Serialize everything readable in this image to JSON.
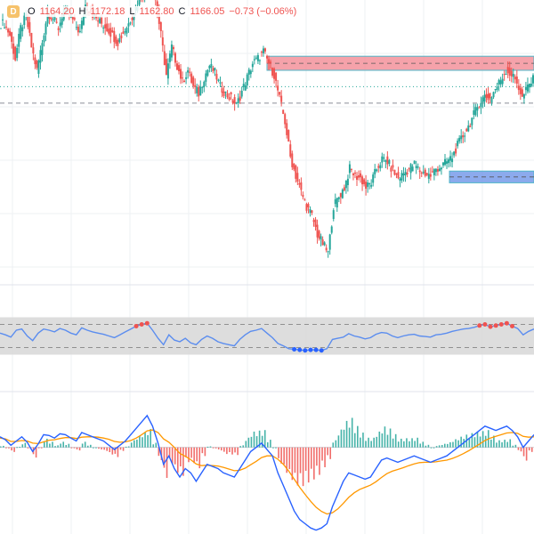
{
  "legend": {
    "symbol_badge": "D",
    "open_label": "O",
    "open": "1164.20",
    "high_label": "H",
    "high": "1172.18",
    "low_label": "L",
    "low": "1162.80",
    "close_label": "C",
    "close": "1166.05",
    "change": "−0.73 (−0.06%)"
  },
  "colors": {
    "up": "#26a69a",
    "down": "#ef5350",
    "rsi_line": "#5b8def",
    "rsi_band": "#d9d9d9",
    "macd_line": "#2962ff",
    "signal_line": "#ff9800",
    "supply_zone": "#f28b95",
    "demand_zone": "#6f95e8"
  },
  "chart_data": [
    {
      "type": "candlestick",
      "title": "",
      "ylim": [
        1080,
        1200
      ],
      "close_path": [
        1190,
        1185,
        1175,
        1188,
        1193,
        1180,
        1170,
        1182,
        1195,
        1192,
        1188,
        1196,
        1194,
        1190,
        1186,
        1198,
        1195,
        1192,
        1190,
        1188,
        1185,
        1182,
        1186,
        1190,
        1195,
        1200,
        1205,
        1210,
        1200,
        1185,
        1168,
        1180,
        1172,
        1165,
        1170,
        1163,
        1160,
        1167,
        1172,
        1169,
        1163,
        1160,
        1158,
        1155,
        1161,
        1167,
        1173,
        1175,
        1178,
        1173,
        1168,
        1158,
        1148,
        1133,
        1125,
        1118,
        1112,
        1108,
        1100,
        1096,
        1092,
        1112,
        1116,
        1120,
        1128,
        1125,
        1124,
        1120,
        1122,
        1128,
        1132,
        1131,
        1127,
        1124,
        1126,
        1128,
        1130,
        1127,
        1126,
        1125,
        1128,
        1129,
        1131,
        1133,
        1138,
        1142,
        1146,
        1151,
        1156,
        1159,
        1158,
        1162,
        1166,
        1170,
        1168,
        1165,
        1158,
        1163,
        1166
      ],
      "ohlc_shown": {
        "open": 1164.2,
        "high": 1172.18,
        "low": 1162.8,
        "close": 1166.05
      },
      "zones": [
        {
          "kind": "supply",
          "from": 1170,
          "to": 1176
        },
        {
          "kind": "demand",
          "from": 1122,
          "to": 1127
        }
      ],
      "reference_lines": [
        1163,
        1156
      ]
    },
    {
      "type": "line",
      "name": "",
      "ylim": [
        0,
        100
      ],
      "bands": [
        30,
        70
      ],
      "values": [
        55,
        52,
        48,
        60,
        62,
        50,
        42,
        55,
        62,
        60,
        57,
        63,
        60,
        55,
        52,
        64,
        60,
        57,
        55,
        53,
        50,
        47,
        52,
        57,
        62,
        67,
        70,
        72,
        60,
        46,
        35,
        52,
        43,
        40,
        46,
        38,
        35,
        44,
        50,
        46,
        40,
        37,
        35,
        33,
        44,
        52,
        58,
        60,
        63,
        55,
        47,
        37,
        33,
        28,
        27,
        26,
        25,
        26,
        26,
        25,
        28,
        44,
        46,
        48,
        54,
        50,
        48,
        45,
        47,
        53,
        56,
        55,
        50,
        47,
        50,
        52,
        53,
        50,
        49,
        48,
        52,
        53,
        55,
        58,
        60,
        62,
        63,
        65,
        68,
        70,
        66,
        68,
        70,
        72,
        67,
        63,
        52,
        58,
        62
      ]
    },
    {
      "type": "line+bar",
      "series_names": [],
      "ylim": [
        -20,
        10
      ],
      "macd": [
        2.5,
        1.8,
        0.5,
        1.5,
        2.5,
        1.2,
        -1,
        0.8,
        3,
        2.8,
        2.2,
        3.2,
        3,
        2.2,
        1.5,
        3.5,
        3,
        2.5,
        2,
        1.5,
        0.5,
        -0.5,
        0.5,
        1.5,
        3,
        4.5,
        6,
        7.5,
        5,
        1,
        -4,
        -2,
        -5,
        -7,
        -5,
        -6,
        -8,
        -6,
        -4,
        -4.5,
        -5,
        -6,
        -6.5,
        -7,
        -5,
        -3,
        -1,
        0,
        1,
        -0.5,
        -2,
        -6,
        -9,
        -12,
        -15,
        -17,
        -18,
        -19,
        -19.5,
        -19,
        -18,
        -14,
        -11,
        -8,
        -6,
        -6.5,
        -7,
        -7.5,
        -7,
        -5,
        -3,
        -2.5,
        -3,
        -3.5,
        -3,
        -2.5,
        -2,
        -2.5,
        -3,
        -3.5,
        -3,
        -2.5,
        -2,
        -1,
        0,
        1,
        2,
        3,
        4,
        5,
        4.5,
        4,
        4.5,
        5,
        4,
        2.5,
        0,
        1.5,
        3
      ],
      "signal": [
        2.2,
        2,
        1.4,
        1.4,
        1.6,
        1.5,
        1,
        0.9,
        1.3,
        1.7,
        1.8,
        2.1,
        2.3,
        2.3,
        2.1,
        2.4,
        2.5,
        2.5,
        2.4,
        2.2,
        1.9,
        1.4,
        1.2,
        1.3,
        1.6,
        2.2,
        3,
        3.9,
        4.1,
        3.5,
        2,
        1.2,
        0,
        -1.4,
        -2.1,
        -2.9,
        -3.9,
        -4.3,
        -4.2,
        -4.3,
        -4.4,
        -4.7,
        -5.1,
        -5.5,
        -5.4,
        -4.9,
        -4.1,
        -3.3,
        -2.4,
        -2,
        -2,
        -2.8,
        -4,
        -5.6,
        -7.5,
        -9.4,
        -11.1,
        -12.7,
        -14.1,
        -15.1,
        -15.7,
        -15.4,
        -14.5,
        -13.2,
        -11.8,
        -10.7,
        -9.9,
        -9.4,
        -8.9,
        -8.1,
        -7.1,
        -6.2,
        -5.6,
        -5.2,
        -4.8,
        -4.3,
        -3.9,
        -3.6,
        -3.5,
        -3.5,
        -3.4,
        -3.2,
        -3,
        -2.6,
        -2.1,
        -1.5,
        -0.8,
        0,
        0.8,
        1.6,
        2.2,
        2.6,
        3,
        3.4,
        3.5,
        3.3,
        2.6,
        2.4,
        2.5
      ]
    }
  ]
}
